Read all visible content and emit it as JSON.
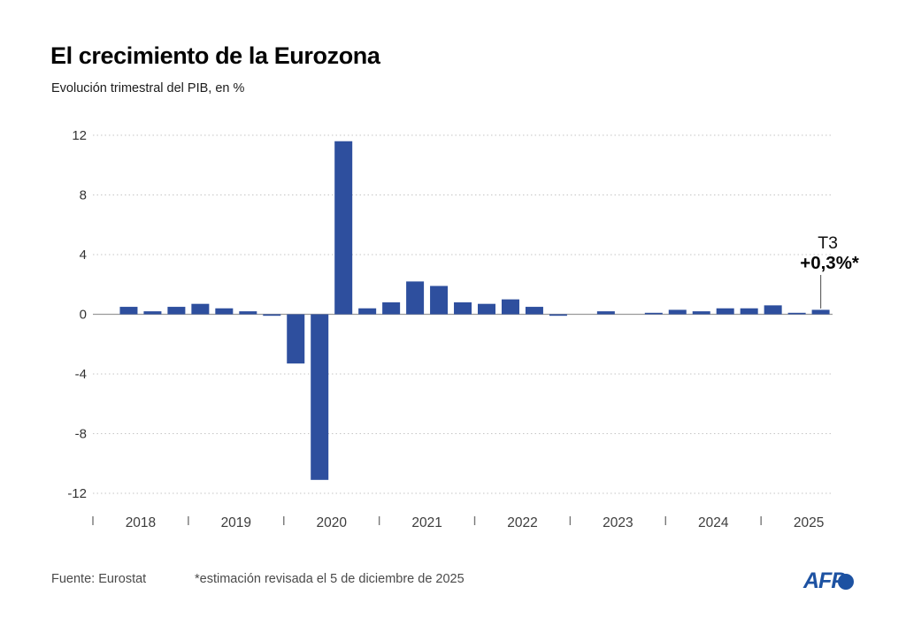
{
  "page": {
    "title": "El crecimiento de la Eurozona",
    "subtitle": "Evolución trimestral del PIB, en %"
  },
  "chart_data": {
    "type": "bar",
    "title": "El crecimiento de la Eurozona",
    "subtitle": "Evolución trimestral del PIB, en %",
    "unit": "%",
    "ylim": [
      -12,
      12
    ],
    "yticks": [
      12,
      8,
      4,
      0,
      -4,
      -8,
      -12
    ],
    "grid": "horizontal-dotted",
    "legend": "none",
    "bar_color": "#2e4f9e",
    "years": [
      "2018",
      "2019",
      "2020",
      "2021",
      "2022",
      "2023",
      "2024",
      "2025"
    ],
    "quarters": [
      "T1 2018",
      "T2 2018",
      "T3 2018",
      "T4 2018",
      "T1 2019",
      "T2 2019",
      "T3 2019",
      "T4 2019",
      "T1 2020",
      "T2 2020",
      "T3 2020",
      "T4 2020",
      "T1 2021",
      "T2 2021",
      "T3 2021",
      "T4 2021",
      "T1 2022",
      "T2 2022",
      "T3 2022",
      "T4 2022",
      "T1 2023",
      "T2 2023",
      "T3 2023",
      "T4 2023",
      "T1 2024",
      "T2 2024",
      "T3 2024",
      "T4 2024",
      "T1 2025",
      "T2 2025",
      "T3 2025"
    ],
    "values": [
      0.0,
      0.5,
      0.2,
      0.5,
      0.7,
      0.4,
      0.2,
      -0.1,
      -3.3,
      -11.1,
      11.6,
      0.4,
      0.8,
      2.2,
      1.9,
      0.8,
      0.7,
      1.0,
      0.5,
      -0.1,
      0.0,
      0.2,
      0.0,
      0.1,
      0.3,
      0.2,
      0.4,
      0.4,
      0.6,
      0.1,
      0.3
    ],
    "annotation": {
      "quarter_label": "T3",
      "value_label": "+0,3%*",
      "target_quarter": "T3 2025",
      "target_value": 0.3
    }
  },
  "footer": {
    "source": "Fuente: Eurostat",
    "note": "*estimación revisada el 5 de diciembre de 2025",
    "logo_text": "AFP"
  },
  "colors": {
    "bar": "#2e4f9e",
    "gridline": "#c5c5c5",
    "zero_line": "#9a9a9a",
    "axis_text": "#3a3a3a",
    "annotation_line": "#666666",
    "afp_blue": "#1d52a2"
  }
}
